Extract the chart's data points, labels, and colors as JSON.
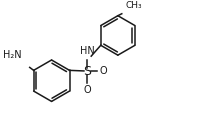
{
  "bg_color": "#ffffff",
  "line_color": "#1a1a1a",
  "line_width": 1.1,
  "font_size": 7.0,
  "fig_width": 1.97,
  "fig_height": 1.32,
  "dpi": 100,
  "xlim": [
    0,
    9.5
  ],
  "ylim": [
    0,
    6.4
  ]
}
